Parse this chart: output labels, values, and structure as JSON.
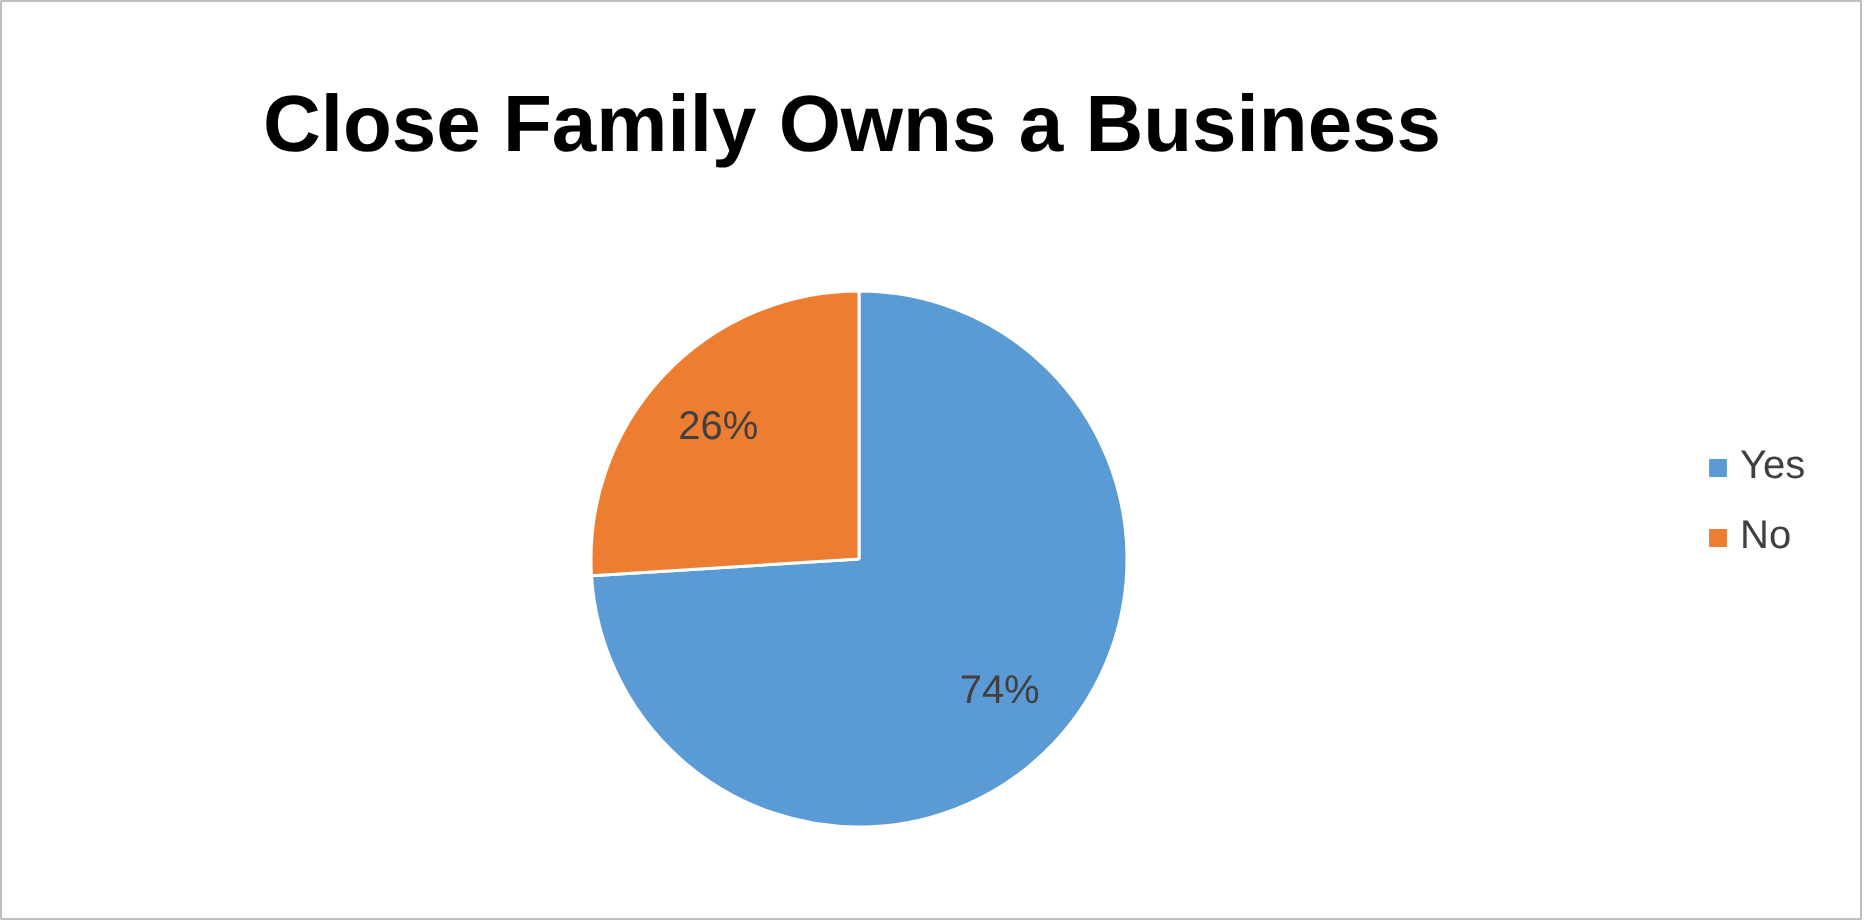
{
  "chart_data": {
    "type": "pie",
    "title": "Close Family Owns a Business",
    "categories": [
      "Yes",
      "No"
    ],
    "values": [
      74,
      26
    ],
    "colors": [
      "#5b9bd5",
      "#ed7d31"
    ],
    "value_labels": [
      "74%",
      "26%"
    ],
    "legend": "right"
  }
}
